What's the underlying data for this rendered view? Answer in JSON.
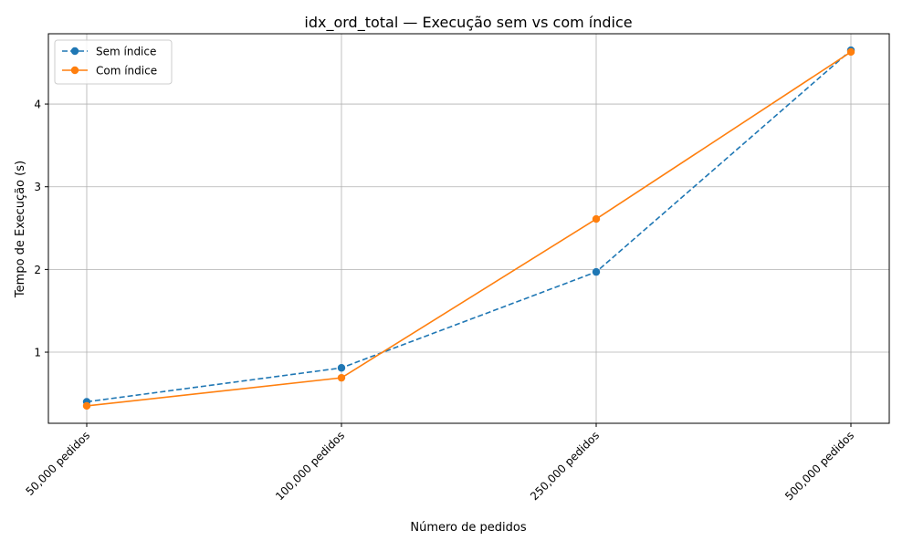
{
  "chart_data": {
    "type": "line",
    "title": "idx_ord_total — Execução sem vs com índice",
    "xlabel": "Número de pedidos",
    "ylabel": "Tempo de Execução (s)",
    "categories": [
      "50,000 pedidos",
      "100,000 pedidos",
      "250,000 pedidos",
      "500,000 pedidos"
    ],
    "ylim": [
      0.14,
      4.85
    ],
    "yticks": [
      1,
      2,
      3,
      4
    ],
    "grid": true,
    "legend_position": "upper-left",
    "series": [
      {
        "name": "Sem índice",
        "values": [
          0.4,
          0.81,
          1.97,
          4.65
        ],
        "color": "#1f77b4",
        "linestyle": "dashed",
        "marker": "circle"
      },
      {
        "name": "Com índice",
        "values": [
          0.35,
          0.69,
          2.61,
          4.63
        ],
        "color": "#ff7f0e",
        "linestyle": "solid",
        "marker": "circle"
      }
    ]
  }
}
